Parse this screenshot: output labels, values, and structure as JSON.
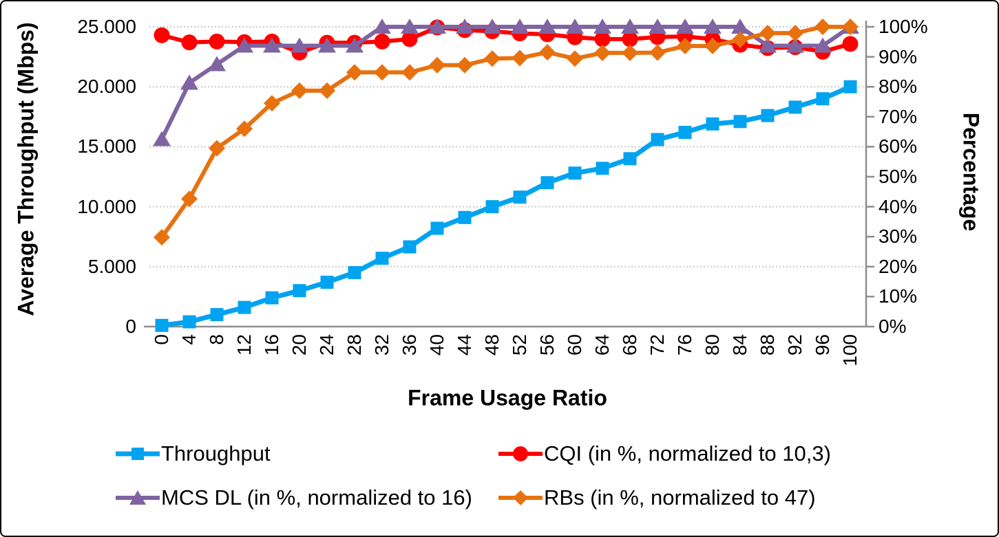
{
  "chart_data": {
    "type": "line",
    "x_axis": {
      "title": "Frame Usage Ratio",
      "tick_values": [
        0,
        4,
        8,
        12,
        16,
        20,
        24,
        28,
        32,
        36,
        40,
        44,
        48,
        52,
        56,
        60,
        64,
        68,
        72,
        76,
        80,
        84,
        88,
        92,
        96,
        100
      ],
      "tick_labels": [
        "0",
        "4",
        "8",
        "12",
        "16",
        "20",
        "24",
        "28",
        "32",
        "36",
        "40",
        "44",
        "48",
        "52",
        "56",
        "60",
        "64",
        "68",
        "72",
        "76",
        "80",
        "84",
        "88",
        "92",
        "96",
        "100"
      ]
    },
    "y_left": {
      "title": "Average Throughput (Mbps)",
      "range": [
        0,
        25000
      ],
      "tick_values": [
        25000,
        20000,
        15000,
        10000,
        5000,
        0
      ],
      "tick_labels": [
        "25.000",
        "20.000",
        "15.000",
        "10.000",
        "5.000",
        "0"
      ]
    },
    "y_right": {
      "title": "Percentage",
      "range": [
        0,
        100
      ],
      "tick_values": [
        100,
        90,
        80,
        70,
        60,
        50,
        40,
        30,
        20,
        10,
        0
      ],
      "tick_labels": [
        "100%",
        "90%",
        "80%",
        "70%",
        "60%",
        "50%",
        "40%",
        "30%",
        "20%",
        "10%",
        "0%"
      ]
    },
    "grid": {
      "horizontal_at_left_values": [
        25000,
        20000,
        15000,
        10000,
        5000
      ],
      "style": "dotted"
    },
    "legend_position": "bottom",
    "series": [
      {
        "id": "throughput",
        "name": "Throughput",
        "axis": "left",
        "color": "#00A3F0",
        "marker": "square",
        "line_width": 7,
        "values": [
          100,
          400,
          1000,
          1600,
          2400,
          3000,
          3700,
          4500,
          5700,
          6650,
          8200,
          9100,
          10000,
          10800,
          12000,
          12800,
          13200,
          14000,
          15600,
          16200,
          16900,
          17100,
          17600,
          18300,
          19000,
          20000
        ]
      },
      {
        "id": "cqi",
        "name": "CQI (in %, normalized to 10,3)",
        "axis": "right",
        "color": "#FF0000",
        "marker": "circle",
        "line_width": 6,
        "values": [
          97.2,
          94.8,
          95.1,
          94.9,
          95.1,
          91.4,
          94.7,
          94.7,
          95.1,
          95.9,
          99.8,
          98.9,
          98.5,
          97.8,
          97.5,
          96.5,
          95.9,
          95.9,
          96.6,
          96.8,
          95.9,
          94.0,
          92.9,
          93.2,
          91.7,
          94.3
        ]
      },
      {
        "id": "mcs-dl",
        "name": "MCS DL (in %, normalized to 16)",
        "axis": "right",
        "color": "#8064A2",
        "marker": "triangle",
        "line_width": 6,
        "values": [
          62.5,
          81.3,
          87.5,
          93.7,
          93.7,
          93.7,
          93.7,
          93.7,
          100,
          100,
          100,
          100,
          100,
          100,
          100,
          100,
          100,
          100,
          100,
          100,
          100,
          100,
          93.7,
          93.7,
          93.7,
          100
        ]
      },
      {
        "id": "rbs",
        "name": "RBs (in %, normalized to 47)",
        "axis": "right",
        "color": "#E8710F",
        "marker": "diamond",
        "line_width": 6,
        "values": [
          29.8,
          42.6,
          59.5,
          66.0,
          74.5,
          78.7,
          78.7,
          84.8,
          84.8,
          84.8,
          87.2,
          87.2,
          89.4,
          89.6,
          91.5,
          89.4,
          91.3,
          91.3,
          91.4,
          93.6,
          93.6,
          95.7,
          97.9,
          97.9,
          100,
          100
        ]
      }
    ],
    "style": {
      "gridline_color": "#C9C9C9",
      "axis_line_color": "#8E8E8E",
      "text_color": "#000000",
      "background": "#FFFFFF"
    }
  }
}
